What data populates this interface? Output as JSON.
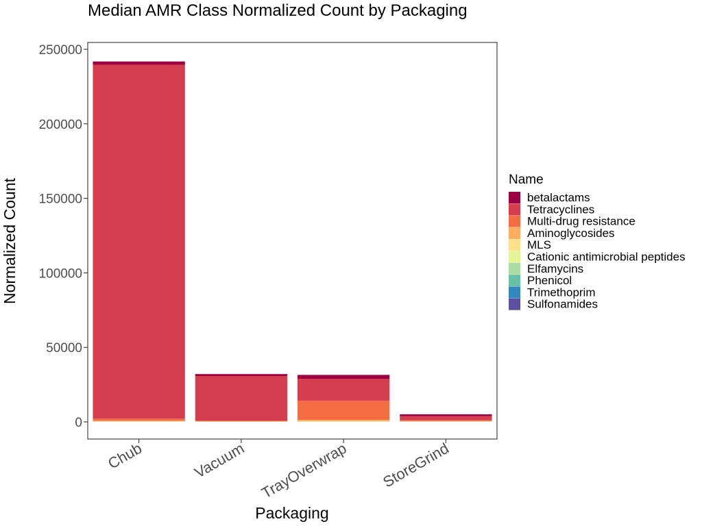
{
  "chart_data": {
    "type": "bar",
    "stacked": true,
    "title": "Median AMR Class Normalized Count by Packaging",
    "xlabel": "Packaging",
    "ylabel": "Normalized Count",
    "ylim": [
      0,
      250000
    ],
    "yticks": [
      "0",
      "50000",
      "100000",
      "150000",
      "200000",
      "250000"
    ],
    "grid": false,
    "legend_position": "right",
    "legend_title": "Name",
    "categories": [
      "Chub",
      "Vacuum",
      "TrayOverwrap",
      "StoreGrind"
    ],
    "series": [
      {
        "name": "betalactams",
        "color": "#9e0142",
        "values": [
          2200,
          1300,
          2600,
          1300
        ]
      },
      {
        "name": "Tetracyclines",
        "color": "#d53e4f",
        "values": [
          237500,
          30000,
          14800,
          2800
        ]
      },
      {
        "name": "Multi-drug resistance",
        "color": "#f46d43",
        "values": [
          1300,
          400,
          12800,
          400
        ]
      },
      {
        "name": "Aminoglycosides",
        "color": "#fdae61",
        "values": [
          500,
          200,
          700,
          300
        ]
      },
      {
        "name": "MLS",
        "color": "#fee08b",
        "values": [
          200,
          100,
          400,
          200
        ]
      },
      {
        "name": "Cationic antimicrobial peptides",
        "color": "#e6f598",
        "values": [
          50,
          30,
          80,
          40
        ]
      },
      {
        "name": "Elfamycins",
        "color": "#abdda4",
        "values": [
          30,
          20,
          50,
          20
        ]
      },
      {
        "name": "Phenicol",
        "color": "#66c2a5",
        "values": [
          20,
          10,
          40,
          20
        ]
      },
      {
        "name": "Trimethoprim",
        "color": "#3288bd",
        "values": [
          20,
          10,
          30,
          10
        ]
      },
      {
        "name": "Sulfonamides",
        "color": "#5e4fa2",
        "values": [
          30,
          20,
          40,
          20
        ]
      }
    ]
  }
}
